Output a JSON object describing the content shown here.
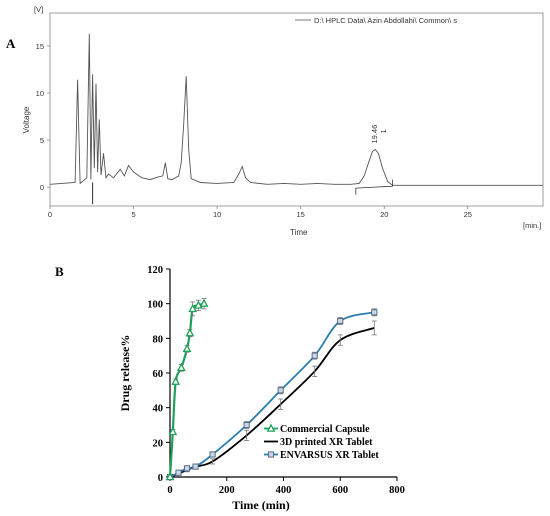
{
  "panel_a_letter": "A",
  "panel_b_letter": "B",
  "colors": {
    "trace_a": "#555555",
    "commercial": "#1fa05a",
    "printed": "#000000",
    "envarsus": "#2b7db0",
    "envarsus_marker_fill": "#c9d6e6"
  },
  "chart_data": [
    {
      "type": "line",
      "unit_top": "[V]",
      "ylabel": "Voltage",
      "xlabel": "Time",
      "x_unit_label": "[min.]",
      "legend_text": "D:\\ HPLC Data\\ Azin Abdollahi\\ Common\\ s",
      "xlim": [
        0,
        29.5
      ],
      "ylim": [
        -2,
        18.5
      ],
      "x_ticks": [
        0,
        5,
        10,
        15,
        20,
        25
      ],
      "y_ticks": [
        0,
        5,
        10,
        15
      ],
      "peak_annotation": {
        "retention_time": "19.46",
        "peak_number": "1",
        "x": 19.46,
        "y": 4.0
      },
      "series": [
        {
          "x": [
            0,
            1.5,
            1.65,
            1.8,
            2.2,
            2.35,
            2.45,
            2.55,
            2.65,
            2.75,
            2.85,
            2.95,
            3.05,
            3.2,
            3.35,
            3.5,
            3.8,
            4.2,
            4.45,
            4.7,
            5.0,
            5.5,
            6.0,
            6.5,
            6.75,
            6.9,
            7.05,
            7.3,
            7.7,
            7.85,
            8.0,
            8.15,
            8.3,
            8.45,
            9.0,
            10.0,
            11.0,
            11.3,
            11.5,
            11.7,
            12.0,
            13.0,
            14.0,
            15.0,
            16.0,
            17.0,
            18.0,
            18.5,
            18.8,
            19.1,
            19.3,
            19.46,
            19.65,
            19.9,
            20.2,
            20.5,
            21.0,
            29.5
          ],
          "y": [
            0.3,
            0.5,
            11.4,
            0.4,
            1.0,
            16.3,
            0.8,
            12.0,
            2.0,
            11.0,
            1.6,
            7.2,
            1.3,
            3.6,
            1.0,
            1.4,
            1.0,
            1.9,
            1.2,
            2.3,
            1.6,
            1.0,
            0.8,
            1.1,
            1.2,
            2.6,
            0.9,
            0.8,
            1.2,
            2.6,
            6.7,
            11.8,
            4.0,
            0.9,
            0.5,
            0.4,
            0.5,
            1.4,
            2.2,
            1.0,
            0.5,
            0.3,
            0.4,
            0.3,
            0.4,
            0.3,
            0.3,
            0.4,
            1.2,
            2.8,
            3.8,
            4.0,
            3.6,
            2.0,
            0.6,
            0.2,
            0.2,
            0.2
          ]
        }
      ]
    },
    {
      "type": "line",
      "xlabel": "Time (min)",
      "ylabel": "Drug release%",
      "xlim": [
        0,
        800
      ],
      "ylim": [
        0,
        120
      ],
      "x_ticks": [
        0,
        200,
        400,
        600,
        800
      ],
      "y_ticks": [
        0,
        20,
        40,
        60,
        80,
        100,
        120
      ],
      "legend_position": "center-right",
      "series": [
        {
          "name": "Commercial Capsule",
          "marker": "triangle",
          "x": [
            0,
            10,
            20,
            40,
            60,
            70,
            80,
            100,
            120
          ],
          "y": [
            0,
            26,
            55,
            63,
            74,
            83,
            97,
            99,
            100
          ],
          "err": [
            0,
            1.5,
            1.5,
            2,
            2,
            2,
            4,
            3,
            3
          ]
        },
        {
          "name": "3D printed XR Tablet",
          "marker": "none",
          "x": [
            0,
            30,
            60,
            90,
            150,
            270,
            390,
            510,
            600,
            720
          ],
          "y": [
            0,
            2,
            4,
            6,
            9,
            24,
            42,
            61,
            79,
            86
          ],
          "err": [
            0,
            1,
            1,
            1,
            1.5,
            3,
            3,
            3,
            3,
            4
          ]
        },
        {
          "name": "ENVARSUS XR Tablet",
          "marker": "square",
          "x": [
            0,
            30,
            60,
            90,
            150,
            270,
            390,
            510,
            600,
            720
          ],
          "y": [
            0,
            2.5,
            5,
            6,
            13,
            30,
            50,
            70,
            90,
            95
          ],
          "err": [
            0,
            1,
            1,
            1,
            1.5,
            2,
            2,
            2,
            2,
            2
          ]
        }
      ]
    }
  ]
}
